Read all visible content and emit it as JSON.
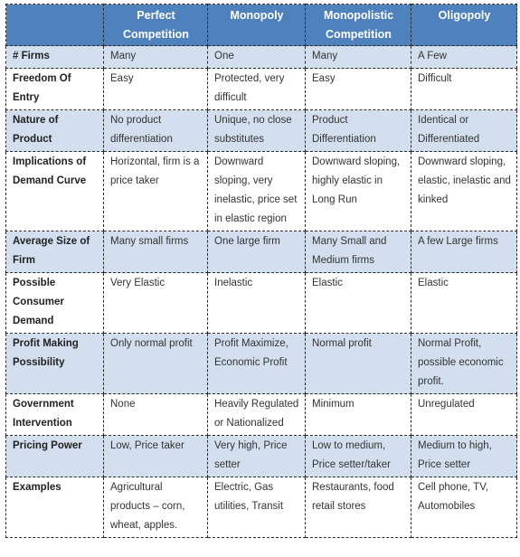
{
  "table": {
    "headers": [
      "",
      "Perfect Competition",
      "Monopoly",
      "Monopolistic Competition",
      "Oligopoly"
    ],
    "rows": [
      {
        "label": "# Firms",
        "cells": [
          "Many",
          "One",
          "Many",
          "A Few"
        ]
      },
      {
        "label": "Freedom Of Entry",
        "cells": [
          "Easy",
          "Protected, very difficult",
          "Easy",
          "Difficult"
        ]
      },
      {
        "label": "Nature of Product",
        "cells": [
          "No product differentiation",
          "Unique, no close substitutes",
          "Product Differentiation",
          "Identical or Differentiated"
        ]
      },
      {
        "label": "Implications of Demand Curve",
        "cells": [
          "Horizontal, firm is a price taker",
          "Downward sloping, very inelastic, price set in elastic region",
          "Downward sloping,  highly elastic in Long Run",
          "Downward sloping, elastic, inelastic and kinked"
        ]
      },
      {
        "label": "Average Size of Firm",
        "cells": [
          "Many small firms",
          "One large firm",
          "Many Small and Medium firms",
          "A few Large firms"
        ]
      },
      {
        "label": "Possible Consumer Demand",
        "cells": [
          "Very Elastic",
          "Inelastic",
          "Elastic",
          "Elastic"
        ]
      },
      {
        "label": "Profit Making Possibility",
        "cells": [
          "Only normal profit",
          "Profit Maximize, Economic Profit",
          "Normal profit",
          "Normal Profit, possible economic profit."
        ]
      },
      {
        "label": "Government Intervention",
        "cells": [
          "None",
          "Heavily Regulated or Nationalized",
          "Minimum",
          "Unregulated"
        ]
      },
      {
        "label": "Pricing Power",
        "cells": [
          "Low, Price taker",
          "Very high, Price setter",
          "Low to medium, Price setter/taker",
          "Medium to high, Price setter"
        ]
      },
      {
        "label": "Examples",
        "cells": [
          "Agricultural products – corn, wheat, apples.",
          "Electric, Gas utilities, Transit",
          "Restaurants, food retail stores",
          "Cell phone, TV, Automobiles"
        ]
      }
    ]
  }
}
